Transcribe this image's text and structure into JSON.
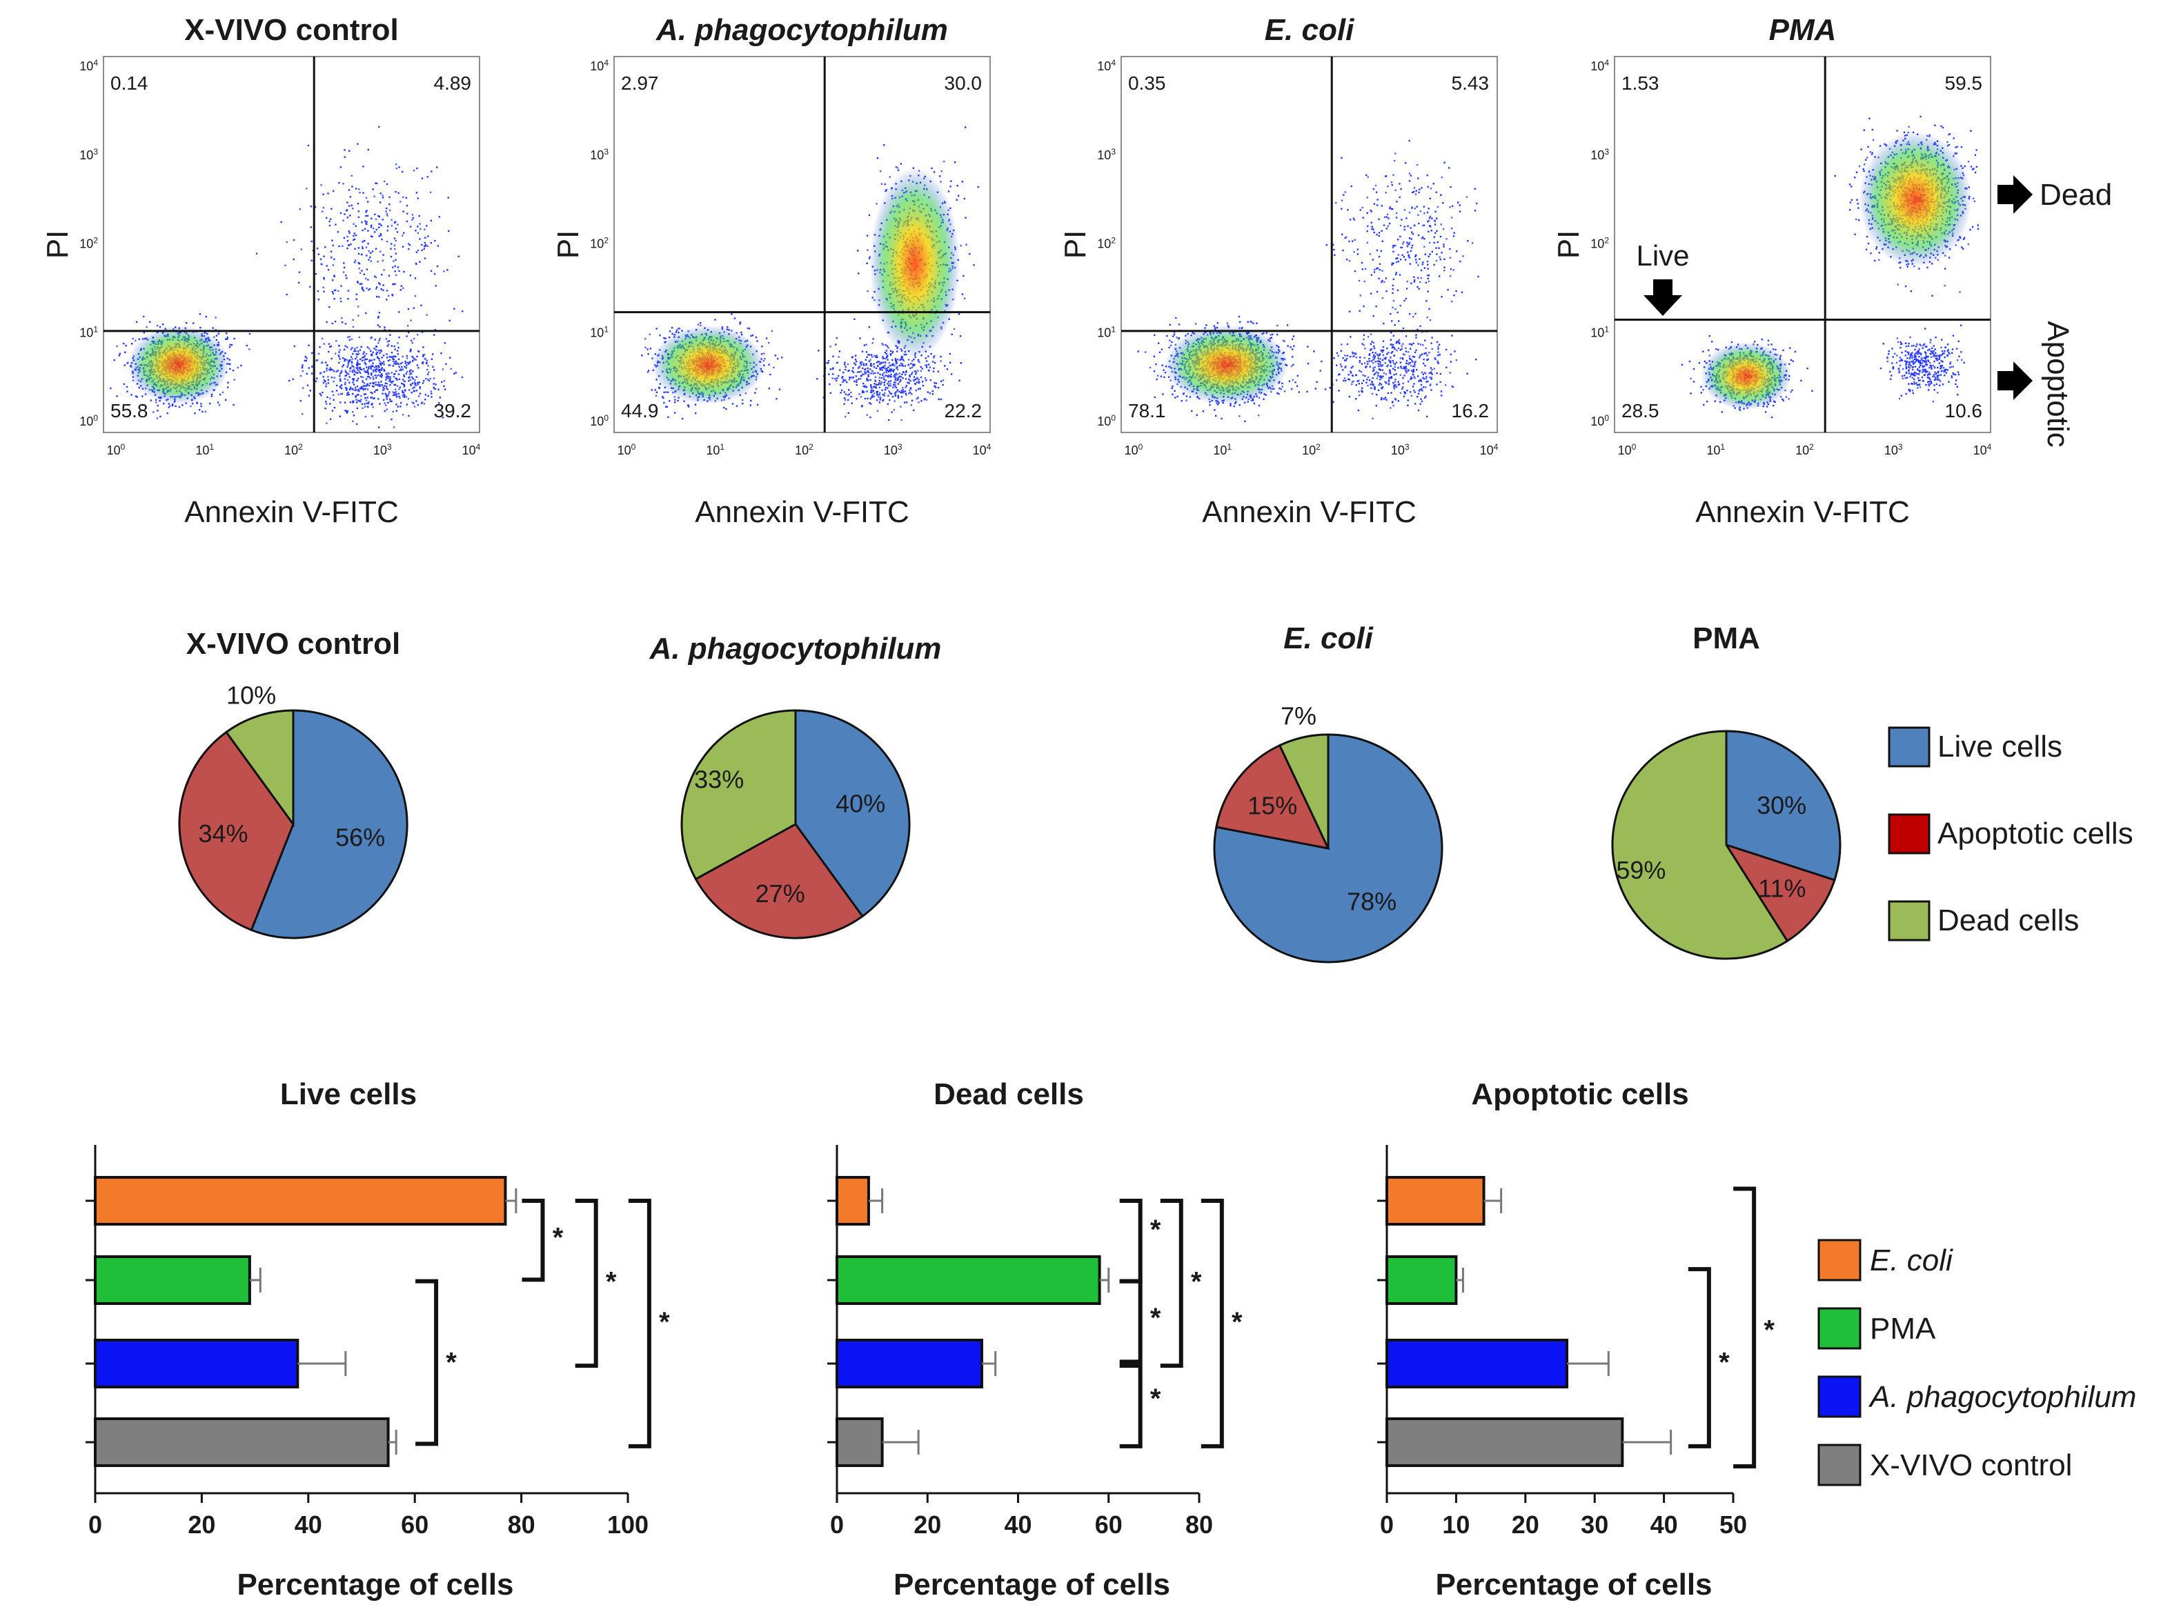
{
  "colors": {
    "live": "#4f81bd",
    "apoptotic": "#c0504d",
    "dead": "#9bbb59",
    "legend_apoptotic": "#c00000",
    "ecoli": "#f37a2b",
    "pma": "#1fbf3a",
    "anaplasma": "#0a14f5",
    "control": "#7f7f7f"
  },
  "flow": {
    "xlabel": "Annexin V-FITC",
    "ylabel": "PI",
    "ticks": [
      "10",
      "10",
      "10",
      "10",
      "10"
    ],
    "tick_exps": [
      "0",
      "1",
      "2",
      "3",
      "4"
    ],
    "panels": [
      {
        "title": "X-VIVO control",
        "title_style": "bold",
        "ul": "0.14",
        "ur": "4.89",
        "ll": "55.8",
        "lr": "39.2"
      },
      {
        "title": "A. phagocytophilum",
        "title_style": "bold-italic",
        "ul": "2.97",
        "ur": "30.0",
        "ll": "44.9",
        "lr": "22.2"
      },
      {
        "title": "E. coli",
        "title_style": "bold-italic",
        "ul": "0.35",
        "ur": "5.43",
        "ll": "78.1",
        "lr": "16.2"
      },
      {
        "title": "PMA",
        "title_style": "bold-italic",
        "ul": "1.53",
        "ur": "59.5",
        "ll": "28.5",
        "lr": "10.6"
      }
    ],
    "annotations": {
      "live": "Live",
      "dead": "Dead",
      "apoptotic": "Apoptotic"
    }
  },
  "chart_data": [
    {
      "type": "pie",
      "title": "X-VIVO control",
      "slices": [
        {
          "label": "Live cells",
          "value": 56,
          "text": "56%"
        },
        {
          "label": "Apoptotic cells",
          "value": 34,
          "text": "34%"
        },
        {
          "label": "Dead cells",
          "value": 10,
          "text": "10%"
        }
      ]
    },
    {
      "type": "pie",
      "title": "A. phagocytophilum",
      "slices": [
        {
          "label": "Live cells",
          "value": 40,
          "text": "40%"
        },
        {
          "label": "Apoptotic cells",
          "value": 27,
          "text": "27%"
        },
        {
          "label": "Dead cells",
          "value": 33,
          "text": "33%"
        }
      ]
    },
    {
      "type": "pie",
      "title": "E. coli",
      "slices": [
        {
          "label": "Live cells",
          "value": 78,
          "text": "78%"
        },
        {
          "label": "Apoptotic cells",
          "value": 15,
          "text": "15%"
        },
        {
          "label": "Dead cells",
          "value": 7,
          "text": "7%"
        }
      ]
    },
    {
      "type": "pie",
      "title": "PMA",
      "slices": [
        {
          "label": "Live cells",
          "value": 30,
          "text": "30%"
        },
        {
          "label": "Apoptotic cells",
          "value": 11,
          "text": "11%"
        },
        {
          "label": "Dead cells",
          "value": 59,
          "text": "59%"
        }
      ]
    },
    {
      "type": "bar",
      "orientation": "horizontal",
      "title": "Live cells",
      "xlabel": "Percentage of cells",
      "xlim": [
        0,
        100
      ],
      "xticks": [
        0,
        20,
        40,
        60,
        80,
        100
      ],
      "categories": [
        "E. coli",
        "PMA",
        "A. phagocytophilum",
        "X-VIVO control"
      ],
      "values": [
        77,
        29,
        38,
        55
      ],
      "errors": [
        2,
        2,
        9,
        1.5
      ],
      "significance": [
        "*",
        "*",
        "*",
        "*"
      ]
    },
    {
      "type": "bar",
      "orientation": "horizontal",
      "title": "Dead cells",
      "xlabel": "Percentage of cells",
      "xlim": [
        0,
        80
      ],
      "xticks": [
        0,
        20,
        40,
        60,
        80
      ],
      "categories": [
        "E. coli",
        "PMA",
        "A. phagocytophilum",
        "X-VIVO control"
      ],
      "values": [
        7,
        58,
        32,
        10
      ],
      "errors": [
        3,
        2,
        3,
        8
      ],
      "significance": [
        "*",
        "*",
        "*",
        "*",
        "*"
      ]
    },
    {
      "type": "bar",
      "orientation": "horizontal",
      "title": "Apoptotic cells",
      "xlabel": "Percentage of cells",
      "xlim": [
        0,
        50
      ],
      "xticks": [
        0,
        10,
        20,
        30,
        40,
        50
      ],
      "categories": [
        "E. coli",
        "PMA",
        "A. phagocytophilum",
        "X-VIVO control"
      ],
      "values": [
        14,
        10,
        26,
        34
      ],
      "errors": [
        2.5,
        1,
        6,
        7
      ],
      "significance": [
        "*",
        "*"
      ]
    }
  ],
  "pie_legend": [
    "Live cells",
    "Apoptotic cells",
    "Dead cells"
  ],
  "bar_legend": [
    "E. coli",
    "PMA",
    "A. phagocytophilum",
    "X-VIVO control"
  ]
}
